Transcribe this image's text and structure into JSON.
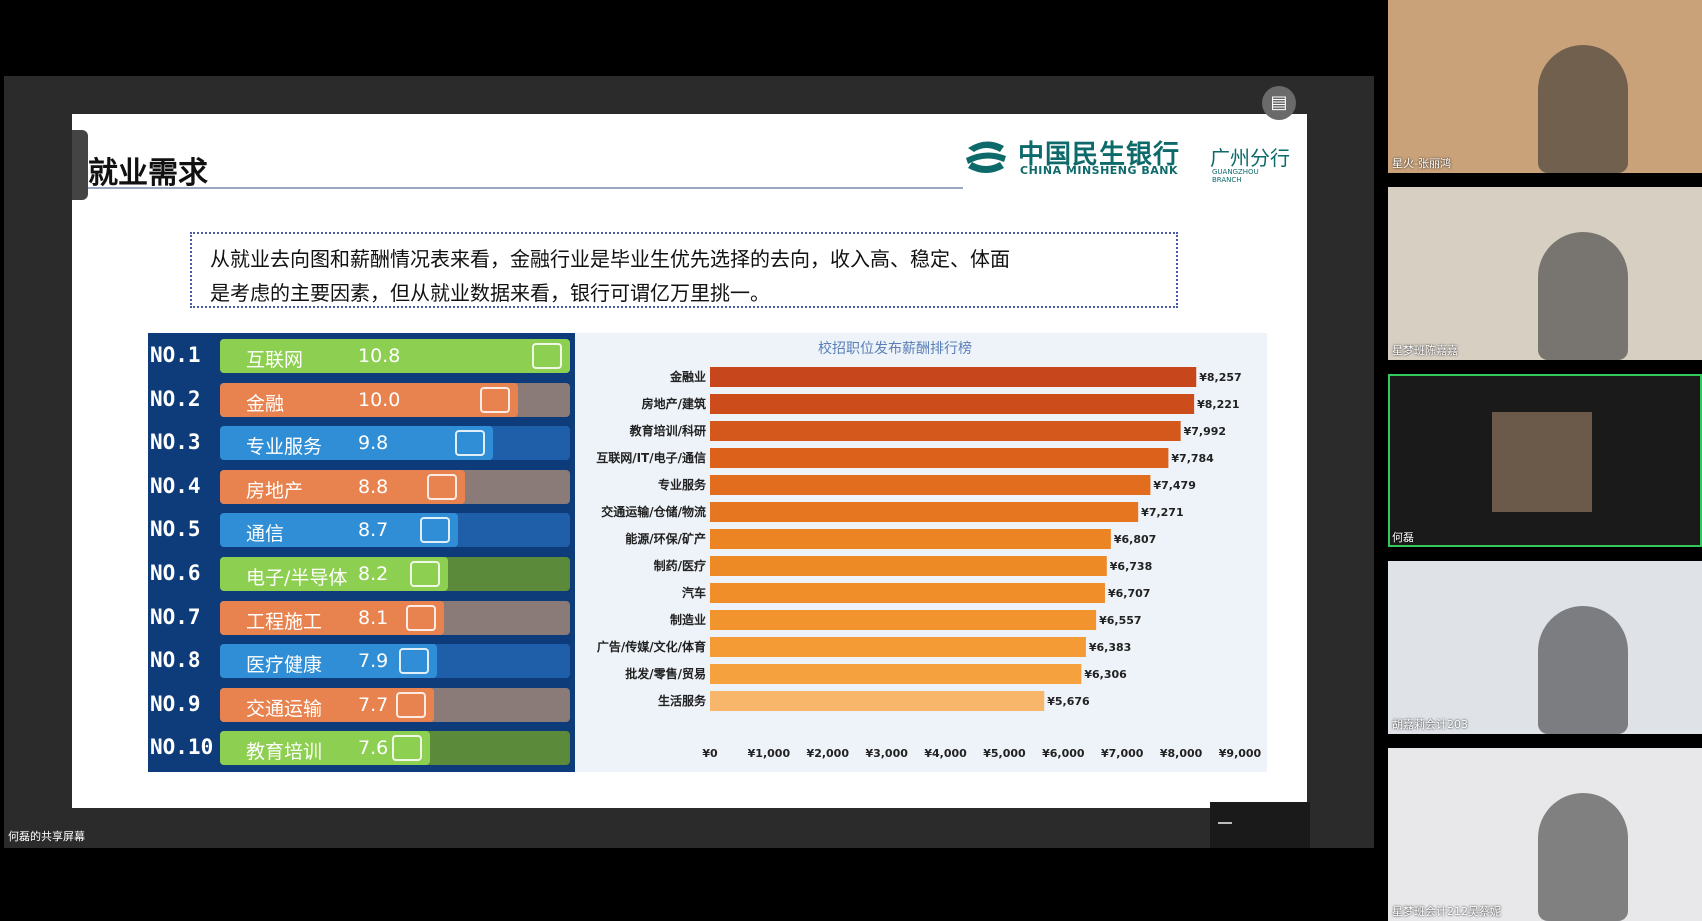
{
  "share": {
    "label": "何磊的共享屏幕"
  },
  "slide": {
    "title": "就业需求",
    "logo": {
      "cn": "中国民生银行",
      "en": "CHINA MINSHENG BANK",
      "branch": "广州分行",
      "branch_en": "GUANGZHOU BRANCH"
    },
    "note_line1": "从就业去向图和薪酬情况表来看，金融行业是毕业生优先选择的去向，收入高、稳定、体面",
    "note_line2": "是考虑的主要因素，但从就业数据来看，银行可谓亿万里挑一。",
    "ranking": [
      {
        "no": "NO.1",
        "name": "互联网",
        "value": "10.8",
        "fill": 1.0,
        "color": "#8dcf50",
        "bg": "#5a8a3a",
        "icon": "monitor-icon"
      },
      {
        "no": "NO.2",
        "name": "金融",
        "value": "10.0",
        "fill": 0.85,
        "color": "#e8834f",
        "bg": "#8a7a78",
        "icon": "bag-icon"
      },
      {
        "no": "NO.3",
        "name": "专业服务",
        "value": "9.8",
        "fill": 0.78,
        "color": "#2f8ed6",
        "bg": "#1f5ea8",
        "icon": "building-icon"
      },
      {
        "no": "NO.4",
        "name": "房地产",
        "value": "8.8",
        "fill": 0.7,
        "color": "#e8834f",
        "bg": "#8a7a78",
        "icon": "house-icon"
      },
      {
        "no": "NO.5",
        "name": "通信",
        "value": "8.7",
        "fill": 0.68,
        "color": "#2f8ed6",
        "bg": "#1f5ea8",
        "icon": "signal-icon"
      },
      {
        "no": "NO.6",
        "name": "电子/半导体",
        "value": "8.2",
        "fill": 0.65,
        "color": "#8dcf50",
        "bg": "#5a8a3a",
        "icon": "chip-icon"
      },
      {
        "no": "NO.7",
        "name": "工程施工",
        "value": "8.1",
        "fill": 0.64,
        "color": "#e8834f",
        "bg": "#8a7a78",
        "icon": "crane-icon"
      },
      {
        "no": "NO.8",
        "name": "医疗健康",
        "value": "7.9",
        "fill": 0.62,
        "color": "#2f8ed6",
        "bg": "#1f5ea8",
        "icon": "medkit-icon"
      },
      {
        "no": "NO.9",
        "name": "交通运输",
        "value": "7.7",
        "fill": 0.61,
        "color": "#e8834f",
        "bg": "#8a7a78",
        "icon": "truck-icon"
      },
      {
        "no": "NO.10",
        "name": "教育培训",
        "value": "7.6",
        "fill": 0.6,
        "color": "#8dcf50",
        "bg": "#5a8a3a",
        "icon": "teacher-icon"
      }
    ]
  },
  "chart_data": {
    "type": "bar",
    "orientation": "horizontal",
    "title": "校招职位发布薪酬排行榜",
    "categories": [
      "金融业",
      "房地产/建筑",
      "教育培训/科研",
      "互联网/IT/电子/通信",
      "专业服务",
      "交通运输/仓储/物流",
      "能源/环保/矿产",
      "制药/医疗",
      "汽车",
      "制造业",
      "广告/传媒/文化/体育",
      "批发/零售/贸易",
      "生活服务"
    ],
    "values": [
      8257,
      8221,
      7992,
      7784,
      7479,
      7271,
      6807,
      6738,
      6707,
      6557,
      6383,
      6306,
      5676
    ],
    "value_labels": [
      "¥8,257",
      "¥8,221",
      "¥7,992",
      "¥7,784",
      "¥7,479",
      "¥7,271",
      "¥6,807",
      "¥6,738",
      "¥6,707",
      "¥6,557",
      "¥6,383",
      "¥6,306",
      "¥5,676"
    ],
    "xlim": [
      0,
      9000
    ],
    "xticks": [
      "¥0",
      "¥1,000",
      "¥2,000",
      "¥3,000",
      "¥4,000",
      "¥5,000",
      "¥6,000",
      "¥7,000",
      "¥8,000",
      "¥9,000"
    ],
    "colors": [
      "#c8461c",
      "#cc4c1c",
      "#d4571c",
      "#dc621c",
      "#e26d1e",
      "#e6761f",
      "#ec8423",
      "#ee8a26",
      "#f08e2a",
      "#f2942e",
      "#f49b36",
      "#f5a23e",
      "#f7b66a"
    ],
    "grid": false,
    "legend": "none"
  },
  "participants": [
    {
      "name": "星火-张丽鸿",
      "bg": "#c9a27a"
    },
    {
      "name": "星梦班陈嘉嘉",
      "bg": "#d8cfc3"
    },
    {
      "name": "何磊",
      "bg": "#1a1a1a"
    },
    {
      "name": "胡嘉莉会计203",
      "bg": "#dfe3e8"
    },
    {
      "name": "星梦班会计212吴蔡妮",
      "bg": "#e8e8ea"
    }
  ],
  "controls": {
    "expand_icon": "layout-icon"
  }
}
